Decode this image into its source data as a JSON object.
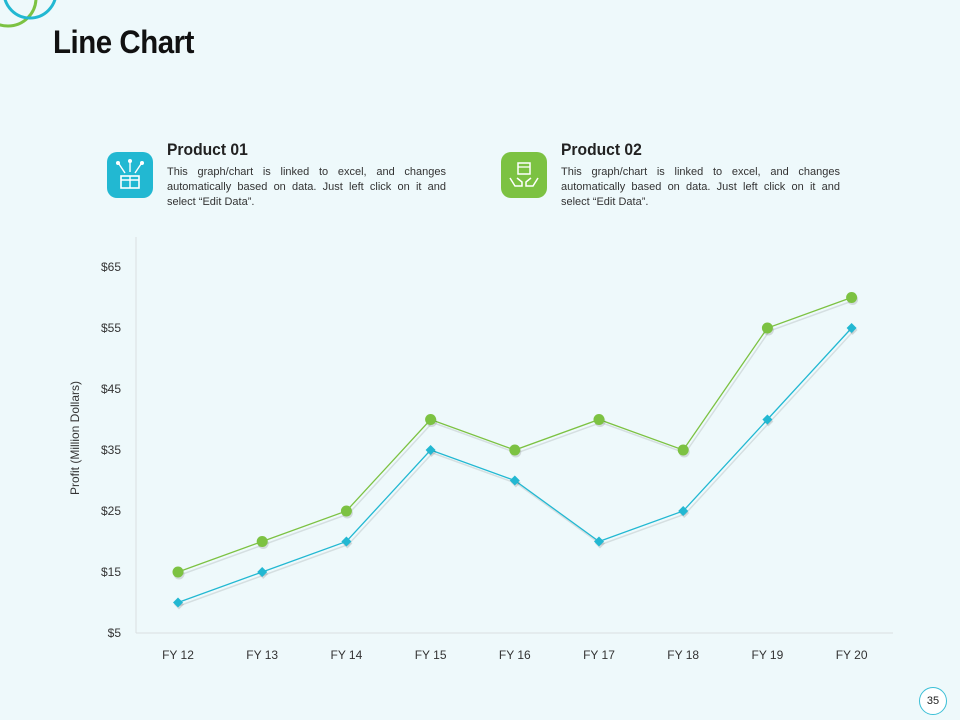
{
  "page": {
    "title": "Line Chart",
    "page_number": "35"
  },
  "products": [
    {
      "name": "Product 01",
      "description": "This graph/chart is linked to excel, and changes automatically based on data. Just left click on it and select “Edit Data”.",
      "icon": "gift-box-icon",
      "color": "#22b8d2"
    },
    {
      "name": "Product 02",
      "description": "This graph/chart is linked to excel, and changes automatically based on data. Just left click on it and select “Edit Data”.",
      "icon": "hands-box-icon",
      "color": "#7cc242"
    }
  ],
  "chart_data": {
    "type": "line",
    "categories": [
      "FY 12",
      "FY 13",
      "FY 14",
      "FY 15",
      "FY 16",
      "FY 17",
      "FY 18",
      "FY 19",
      "FY 20"
    ],
    "series": [
      {
        "name": "Product 01",
        "values": [
          10,
          15,
          20,
          35,
          30,
          20,
          25,
          40,
          55
        ],
        "color": "#22b8d2",
        "marker": "diamond"
      },
      {
        "name": "Product 02",
        "values": [
          15,
          20,
          25,
          40,
          35,
          40,
          35,
          55,
          60
        ],
        "color": "#7cc242",
        "marker": "circle"
      }
    ],
    "ylabel": "Profit  (Million Dollars)",
    "y_ticks": [
      "$5",
      "$15",
      "$25",
      "$35",
      "$45",
      "$55",
      "$65"
    ],
    "ylim": [
      5,
      70
    ],
    "grid": false
  }
}
